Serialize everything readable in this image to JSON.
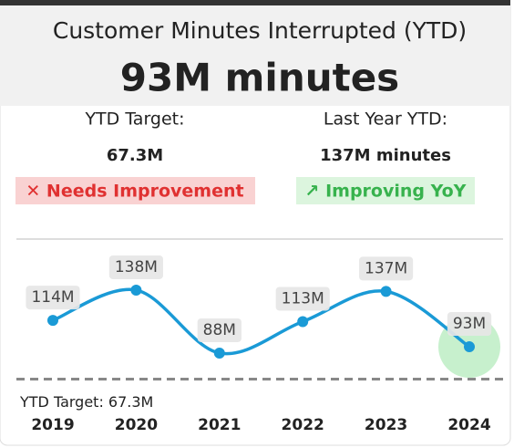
{
  "header": {
    "title": "Customer Minutes Interrupted (YTD)",
    "value": "93M minutes"
  },
  "kpis": [
    {
      "label": "YTD Target:",
      "value": "67.3M",
      "status": "✕ Needs Improvement"
    },
    {
      "label": "Last Year YTD:",
      "value": "137M minutes",
      "status": "↗ Improving YoY"
    }
  ],
  "chart_data": {
    "type": "line",
    "categories": [
      "2019",
      "2020",
      "2021",
      "2022",
      "2023",
      "2024"
    ],
    "series": [
      {
        "name": "Minutes Interrupted",
        "color": "#1a9ad6",
        "values": [
          114,
          138,
          88,
          113,
          137,
          93
        ],
        "value_labels": [
          "114M",
          "138M",
          "88M",
          "113M",
          "137M",
          "93M"
        ]
      }
    ],
    "ylim": [
      60,
      150
    ],
    "target": {
      "value": 67.3,
      "label": "YTD Target: 67.3M",
      "color": "#888888"
    }
  }
}
